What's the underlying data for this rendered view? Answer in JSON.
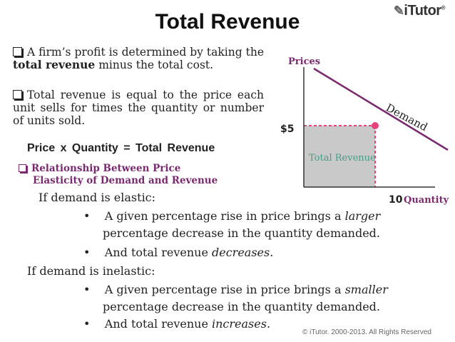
{
  "title": "Total Revenue",
  "logo": {
    "text": "iTutor",
    "mark": "®"
  },
  "bullets": [
    {
      "pre": "A firm’s profit is determined by taking the ",
      "bold": "total revenue",
      "post": " minus the total cost."
    },
    {
      "text": "Total revenue is equal to the price each unit sells for times the quantity or number of units sold."
    }
  ],
  "formula": "Price x Quantity = Total Revenue",
  "relationship": {
    "line1": "Relationship Between Price",
    "line2": "Elasticity of Demand and Revenue"
  },
  "elastic": {
    "heading": "If demand is elastic:",
    "items": [
      {
        "pre": "A given percentage rise in price brings a ",
        "em": "larger",
        "line2": "percentage decrease in the quantity demanded."
      },
      {
        "pre": "And total revenue ",
        "em": "decreases",
        "post": "."
      }
    ]
  },
  "inelastic": {
    "heading": "If demand is inelastic:",
    "items": [
      {
        "pre": "A given percentage rise in price brings a ",
        "em": "smaller",
        "line2": "percentage decrease in the quantity demanded."
      },
      {
        "pre": "And total revenue ",
        "em": "increases",
        "post": "."
      }
    ]
  },
  "chart_data": {
    "type": "line",
    "ylabel": "Prices",
    "xlabel": "Quantity",
    "price_point": "$5",
    "quantity_point": "10",
    "curve_label": "Demand",
    "area_label": "Total Revenue",
    "colors": {
      "curve": "#7a2a6e",
      "area": "#c9c9c9",
      "dashed": "#e8427a",
      "point": "#e8427a",
      "area_text": "#4a9a8a"
    }
  },
  "copyright": "© iTutor. 2000-2013. All Rights Reserved"
}
